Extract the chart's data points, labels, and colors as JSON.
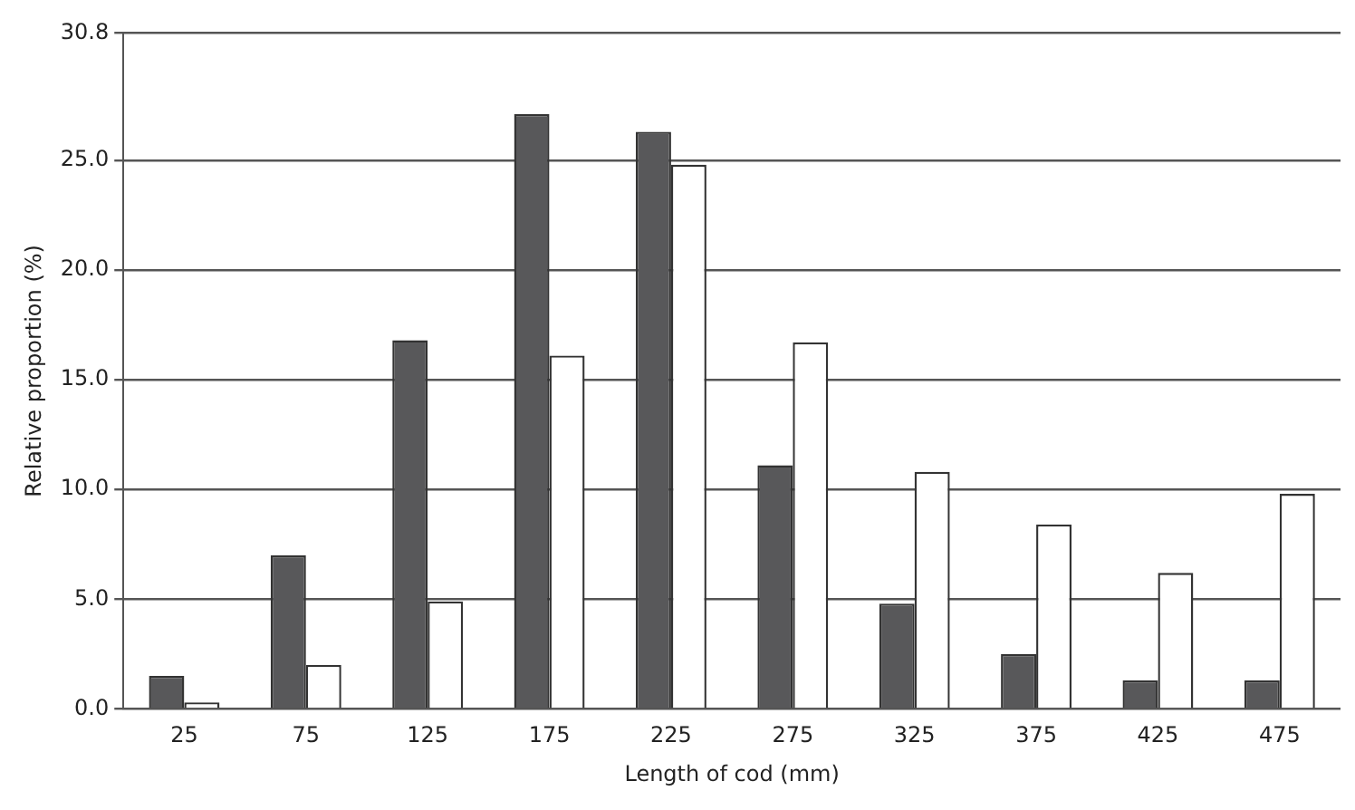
{
  "chart_data": {
    "type": "bar",
    "xlabel": "Length of cod (mm)",
    "ylabel": "Relative proportion (%)",
    "categories": [
      "25",
      "75",
      "125",
      "175",
      "225",
      "275",
      "325",
      "375",
      "425",
      "475"
    ],
    "series": [
      {
        "color": "#58585a",
        "values": [
          1.5,
          7.0,
          16.8,
          27.1,
          26.3,
          11.1,
          4.8,
          2.5,
          1.3,
          1.3
        ]
      },
      {
        "color": "#ffffff",
        "values": [
          0.3,
          2.0,
          4.9,
          16.1,
          24.8,
          16.7,
          10.8,
          8.4,
          6.2,
          9.8
        ]
      }
    ],
    "ylim": [
      0,
      30.8
    ],
    "yticks": [
      {
        "value": 0,
        "label": "0.0"
      },
      {
        "value": 5,
        "label": "5.0"
      },
      {
        "value": 10,
        "label": "10.0"
      },
      {
        "value": 15,
        "label": "15.0"
      },
      {
        "value": 20,
        "label": "20.0"
      },
      {
        "value": 25,
        "label": "25.0"
      },
      {
        "value": 30.8,
        "label": "30.8"
      }
    ],
    "grid": "y",
    "legend": false
  }
}
